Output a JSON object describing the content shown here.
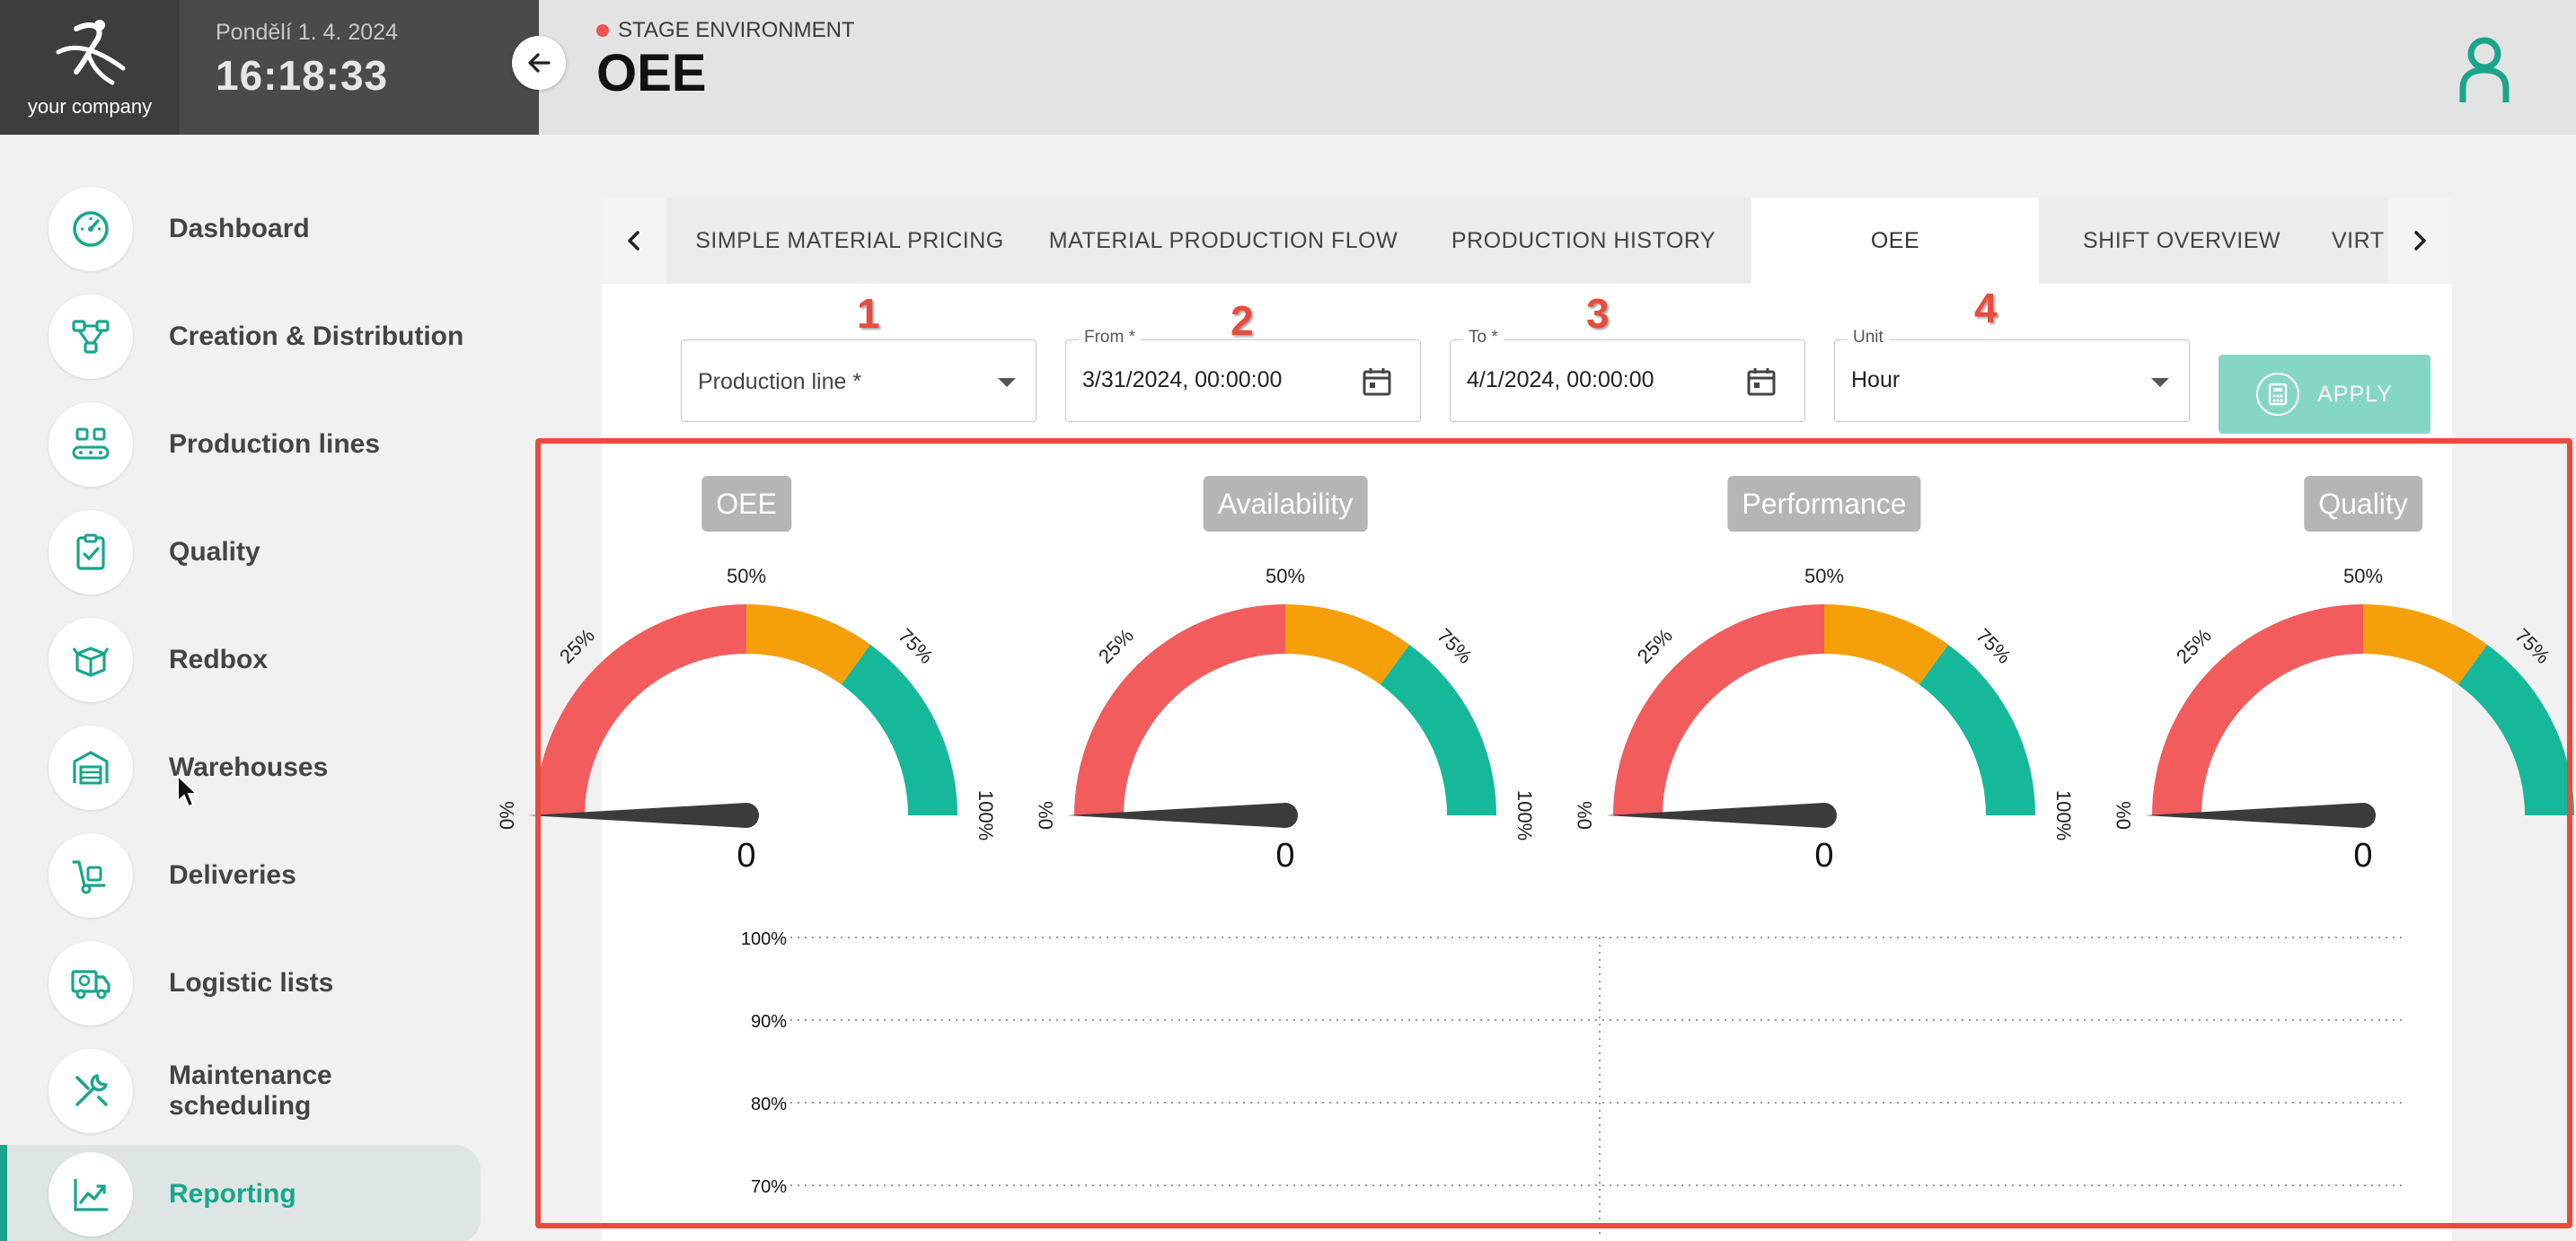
{
  "brand": {
    "name": "your company"
  },
  "clock": {
    "date": "Pondělí 1. 4. 2024",
    "time": "16:18:33"
  },
  "header": {
    "environment": "STAGE ENVIRONMENT",
    "title": "OEE",
    "env_color": "#ef5350"
  },
  "sidebar": {
    "accent": "#1aa58b",
    "items": [
      {
        "label": "Dashboard",
        "icon": "gauge-icon"
      },
      {
        "label": "Creation & Distribution",
        "icon": "flow-icon"
      },
      {
        "label": "Production lines",
        "icon": "conveyor-icon"
      },
      {
        "label": "Quality",
        "icon": "clipboard-check-icon"
      },
      {
        "label": "Redbox",
        "icon": "box-icon"
      },
      {
        "label": "Warehouses",
        "icon": "warehouse-icon"
      },
      {
        "label": "Deliveries",
        "icon": "hand-truck-icon"
      },
      {
        "label": "Logistic lists",
        "icon": "truck-icon"
      },
      {
        "label": "Maintenance scheduling",
        "icon": "tools-icon"
      },
      {
        "label": "Reporting",
        "icon": "chart-icon",
        "active": true
      }
    ]
  },
  "tabs": [
    {
      "label": "SIMPLE MATERIAL PRICING"
    },
    {
      "label": "MATERIAL PRODUCTION FLOW"
    },
    {
      "label": "PRODUCTION HISTORY"
    },
    {
      "label": "OEE",
      "active": true
    },
    {
      "label": "SHIFT OVERVIEW"
    },
    {
      "label": "VIRTUA"
    }
  ],
  "steps": [
    "1",
    "2",
    "3",
    "4"
  ],
  "filters": {
    "production_line": {
      "placeholder": "Production line *"
    },
    "from": {
      "label": "From *",
      "value": "3/31/2024, 00:00:00"
    },
    "to": {
      "label": "To *",
      "value": "4/1/2024, 00:00:00"
    },
    "unit": {
      "label": "Unit",
      "value": "Hour"
    },
    "apply_label": "APPLY"
  },
  "gauges": [
    {
      "title": "OEE",
      "value": "0",
      "fraction": 0
    },
    {
      "title": "Availability",
      "value": "0",
      "fraction": 0
    },
    {
      "title": "Performance",
      "value": "0",
      "fraction": 0
    },
    {
      "title": "Quality",
      "value": "0",
      "fraction": 0
    }
  ],
  "gauge_ticks": [
    "0%",
    "25%",
    "50%",
    "75%",
    "100%"
  ],
  "gauge_colors": {
    "low": "#f25c5c",
    "mid": "#f5a008",
    "high": "#16b89a",
    "needle": "#3b3b3b"
  },
  "chart_data": {
    "type": "line",
    "yticks": [
      "100%",
      "90%",
      "80%",
      "70%"
    ],
    "ylim": [
      70,
      100
    ],
    "series": []
  },
  "highlight_color": "#e74c3c"
}
